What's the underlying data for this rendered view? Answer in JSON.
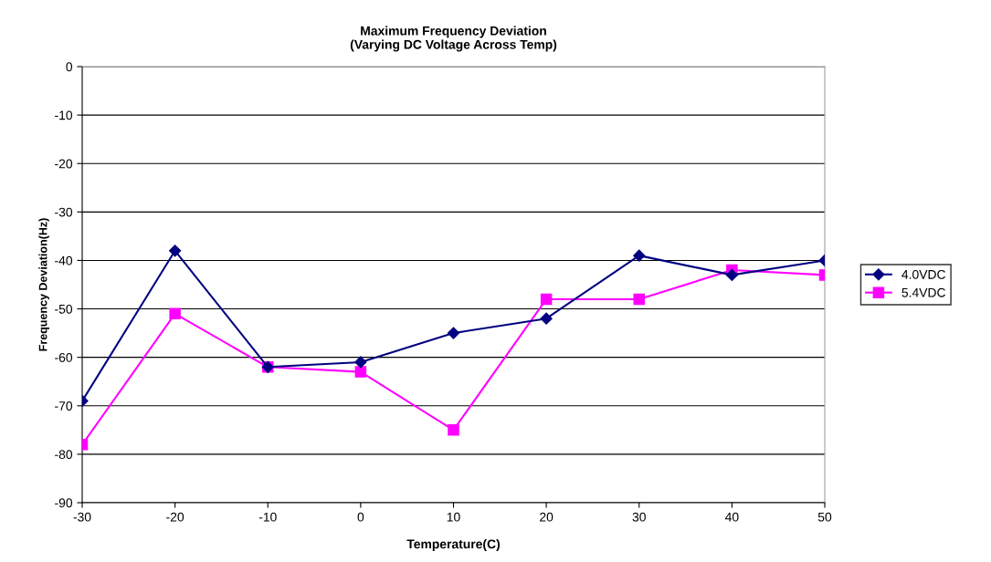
{
  "chart_data": {
    "type": "line",
    "title": "Maximum Frequency Deviation\n(Varying DC Voltage Across Temp)",
    "xlabel": "Temperature(C)",
    "ylabel": "Frequency Deviation(Hz)",
    "x": [
      -30,
      -20,
      -10,
      0,
      10,
      20,
      30,
      40,
      50
    ],
    "series": [
      {
        "name": "4.0VDC",
        "color": "#000080",
        "marker": "diamond",
        "values": [
          -69,
          -38,
          -62,
          -61,
          -55,
          -52,
          -39,
          -43,
          -40
        ]
      },
      {
        "name": "5.4VDC",
        "color": "#ff00ff",
        "marker": "square",
        "values": [
          -78,
          -51,
          -62,
          -63,
          -75,
          -48,
          -48,
          -42,
          -43
        ]
      }
    ],
    "xlim": [
      -30,
      50
    ],
    "xticks": [
      -30,
      -20,
      -10,
      0,
      10,
      20,
      30,
      40,
      50
    ],
    "ylim": [
      -90,
      0
    ],
    "yticks": [
      -90,
      -80,
      -70,
      -60,
      -50,
      -40,
      -30,
      -20,
      -10,
      0
    ],
    "grid": "y",
    "legend": "right",
    "line_style": "solid"
  }
}
